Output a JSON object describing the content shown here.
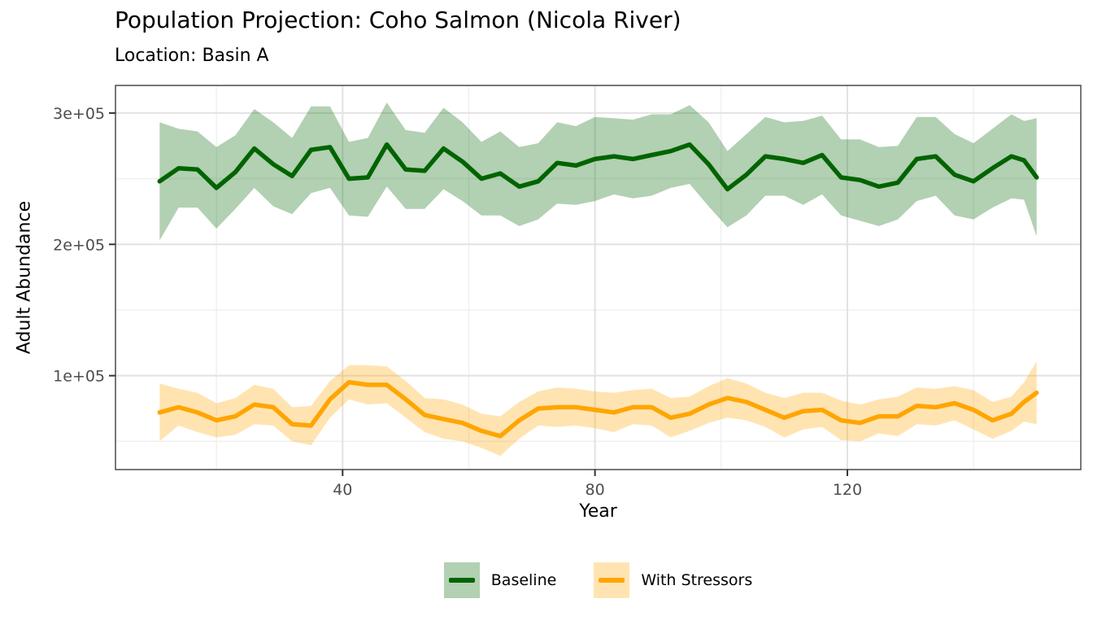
{
  "theme": {
    "background": "#ffffff",
    "panel_border": "#4a4a4a",
    "grid_major": "#e2e2e2",
    "grid_minor": "#f0f0f0",
    "tick_color": "#333333",
    "tick_text_color": "#4d4d4d",
    "text_color": "#000000"
  },
  "chart_data": {
    "type": "line",
    "title": "Population Projection: Coho Salmon (Nicola River)",
    "subtitle": "Location: Basin A",
    "xlabel": "Year",
    "ylabel": "Adult Abundance",
    "grid": "on",
    "legend_position": "bottom",
    "xlim": [
      4,
      157
    ],
    "ylim": [
      28500,
      321000
    ],
    "x_ticks": [
      {
        "value": 40,
        "label": "40"
      },
      {
        "value": 80,
        "label": "80"
      },
      {
        "value": 120,
        "label": "120"
      }
    ],
    "x_minor": [
      20,
      60,
      100,
      140
    ],
    "y_ticks": [
      {
        "value": 100000,
        "label": "1e+05"
      },
      {
        "value": 200000,
        "label": "2e+05"
      },
      {
        "value": 300000,
        "label": "3e+05"
      }
    ],
    "y_minor": [
      50000,
      150000,
      250000
    ],
    "x": [
      11,
      14,
      17,
      20,
      23,
      26,
      29,
      32,
      35,
      38,
      41,
      44,
      47,
      50,
      53,
      56,
      59,
      62,
      65,
      68,
      71,
      74,
      77,
      80,
      83,
      86,
      89,
      92,
      95,
      98,
      101,
      104,
      107,
      110,
      113,
      116,
      119,
      122,
      125,
      128,
      131,
      134,
      137,
      140,
      143,
      146,
      148,
      150
    ],
    "series": [
      {
        "name": "Baseline",
        "color": "#006400",
        "ribbon_color": "rgba(0,100,0,0.30)",
        "values": [
          248000,
          258000,
          257000,
          243000,
          255000,
          273000,
          261000,
          252000,
          272000,
          274000,
          250000,
          251000,
          276000,
          257000,
          256000,
          273000,
          263000,
          250000,
          254000,
          244000,
          248000,
          262000,
          260000,
          265000,
          267000,
          265000,
          268000,
          271000,
          276000,
          261000,
          242000,
          253000,
          267000,
          265000,
          262000,
          268000,
          251000,
          249000,
          244000,
          247000,
          265000,
          267000,
          253000,
          248000,
          258000,
          267000,
          264000,
          251000
        ],
        "upper": [
          293000,
          288000,
          286000,
          274000,
          283000,
          303000,
          293000,
          281000,
          305000,
          305000,
          278000,
          281000,
          308000,
          287000,
          285000,
          304000,
          293000,
          278000,
          286000,
          274000,
          277000,
          293000,
          290000,
          297000,
          296000,
          295000,
          299000,
          299000,
          306000,
          293000,
          271000,
          284000,
          297000,
          293000,
          294000,
          298000,
          280000,
          280000,
          274000,
          275000,
          297000,
          297000,
          284000,
          277000,
          288000,
          299000,
          294000,
          296000
        ],
        "lower": [
          203000,
          228000,
          228000,
          212000,
          227000,
          243000,
          229000,
          223000,
          239000,
          243000,
          222000,
          221000,
          244000,
          227000,
          227000,
          242000,
          233000,
          222000,
          222000,
          214000,
          219000,
          231000,
          230000,
          233000,
          238000,
          235000,
          237000,
          243000,
          246000,
          229000,
          213000,
          222000,
          237000,
          237000,
          230000,
          238000,
          222000,
          218000,
          214000,
          219000,
          233000,
          237000,
          222000,
          219000,
          228000,
          235000,
          234000,
          206000
        ]
      },
      {
        "name": "With Stressors",
        "color": "#FFA500",
        "ribbon_color": "rgba(255,165,0,0.30)",
        "values": [
          72000,
          76000,
          72000,
          66000,
          69000,
          78000,
          76000,
          63000,
          62000,
          82000,
          95000,
          93000,
          93000,
          82000,
          70000,
          67000,
          64000,
          58000,
          54000,
          66000,
          75000,
          76000,
          76000,
          74000,
          72000,
          76000,
          76000,
          68000,
          71000,
          78000,
          83000,
          80000,
          74000,
          68000,
          73000,
          74000,
          66000,
          64000,
          69000,
          69000,
          77000,
          76000,
          79000,
          74000,
          66000,
          71000,
          80000,
          87000
        ],
        "upper": [
          94000,
          90000,
          87000,
          79000,
          83000,
          93000,
          90000,
          76000,
          77000,
          96000,
          108000,
          108000,
          107000,
          96000,
          83000,
          82000,
          78000,
          71000,
          69000,
          80000,
          88000,
          91000,
          90000,
          88000,
          87000,
          89000,
          90000,
          83000,
          84000,
          92000,
          98000,
          94000,
          87000,
          83000,
          87000,
          87000,
          81000,
          78000,
          82000,
          84000,
          91000,
          90000,
          92000,
          89000,
          80000,
          84000,
          95000,
          111000
        ],
        "lower": [
          50000,
          62000,
          57000,
          53000,
          55000,
          63000,
          62000,
          50000,
          47000,
          68000,
          82000,
          78000,
          79000,
          68000,
          57000,
          52000,
          50000,
          45000,
          39000,
          52000,
          62000,
          61000,
          62000,
          60000,
          57000,
          63000,
          62000,
          53000,
          58000,
          64000,
          68000,
          66000,
          61000,
          53000,
          59000,
          61000,
          51000,
          50000,
          56000,
          54000,
          63000,
          62000,
          66000,
          59000,
          52000,
          58000,
          65000,
          63000
        ]
      }
    ]
  }
}
